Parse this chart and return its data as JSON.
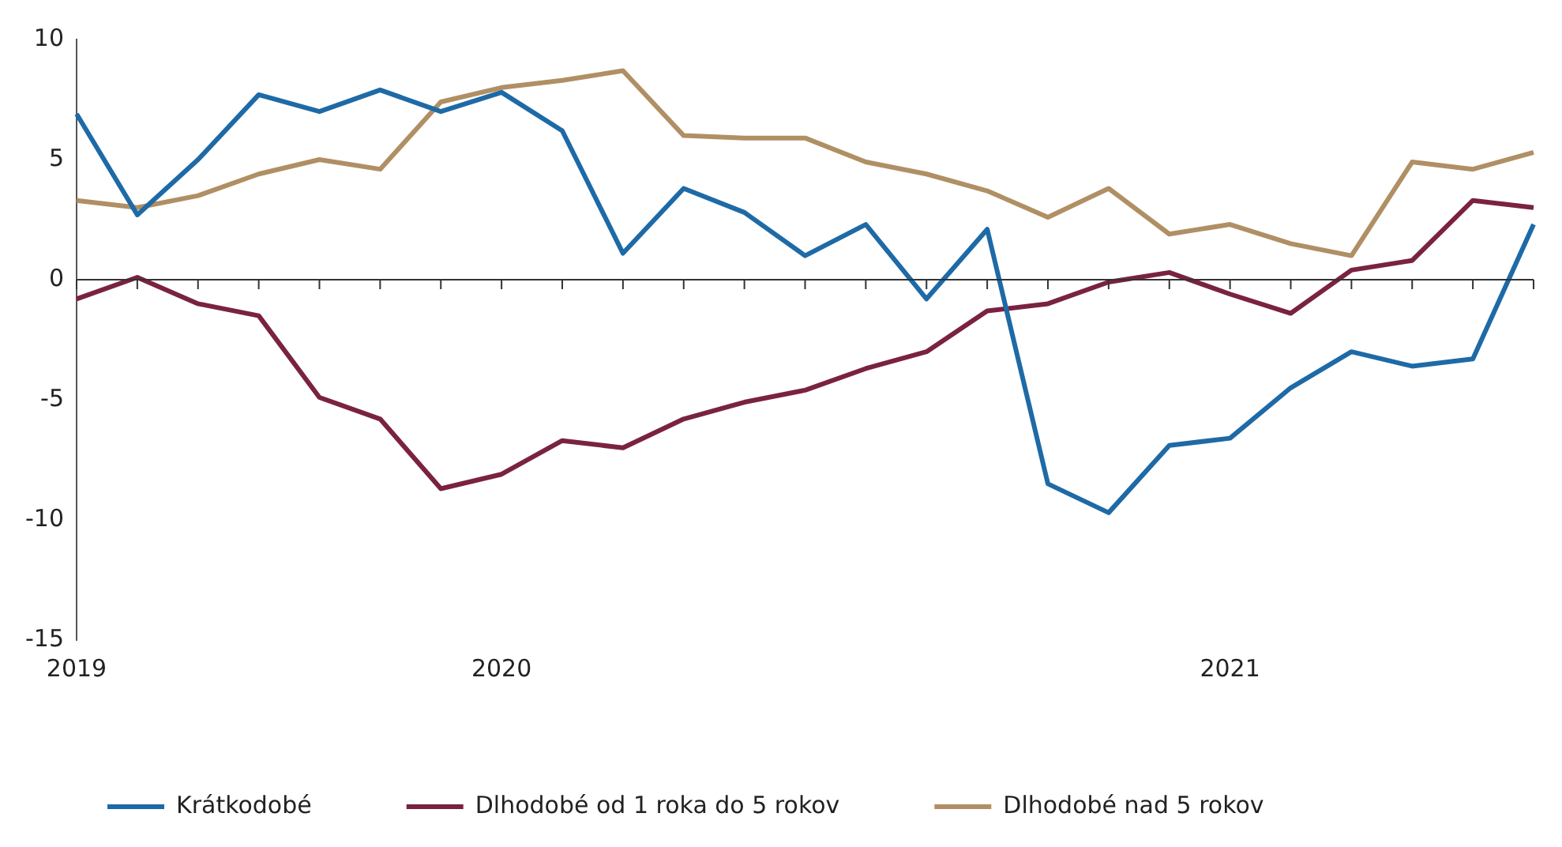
{
  "chart_data": {
    "type": "line",
    "categories": [
      "2019",
      null,
      null,
      null,
      null,
      null,
      null,
      "2020",
      null,
      null,
      null,
      null,
      null,
      null,
      null,
      null,
      null,
      null,
      null,
      "2021",
      null,
      null,
      null,
      null,
      null
    ],
    "series": [
      {
        "name": "Krátkodobé",
        "color": "#1e6aa6",
        "values": [
          6.9,
          2.7,
          5.0,
          7.7,
          7.0,
          7.9,
          7.0,
          7.8,
          6.2,
          1.1,
          3.8,
          2.8,
          1.0,
          2.3,
          -0.8,
          2.1,
          -8.5,
          -9.7,
          -6.9,
          -6.6,
          -4.5,
          -3.0,
          -3.6,
          -3.3,
          2.3
        ]
      },
      {
        "name": "Dlhodobé od 1 roka do 5 rokov",
        "color": "#7a2242",
        "values": [
          -0.8,
          0.1,
          -1.0,
          -1.5,
          -4.9,
          -5.8,
          -8.7,
          -8.1,
          -6.7,
          -7.0,
          -5.8,
          -5.1,
          -4.6,
          -3.7,
          -3.0,
          -1.3,
          -1.0,
          -0.1,
          0.3,
          -0.6,
          -1.4,
          0.4,
          0.8,
          3.3,
          3.0
        ]
      },
      {
        "name": "Dlhodobé nad 5 rokov",
        "color": "#b08f64",
        "values": [
          3.3,
          3.0,
          3.5,
          4.4,
          5.0,
          4.6,
          7.4,
          8.0,
          8.3,
          8.7,
          6.0,
          5.9,
          5.9,
          4.9,
          4.4,
          3.7,
          2.6,
          3.8,
          1.9,
          2.3,
          1.5,
          1.0,
          4.9,
          4.6,
          5.3
        ]
      }
    ],
    "ylim": [
      -15,
      10
    ],
    "yticks": [
      -15,
      -10,
      -5,
      0,
      5,
      10
    ],
    "grid": false,
    "legend": "bottom",
    "marker": "none",
    "line_style": "solid",
    "ref_lines": [
      {
        "axis": "y",
        "value": 0,
        "color": "#333333"
      }
    ]
  }
}
